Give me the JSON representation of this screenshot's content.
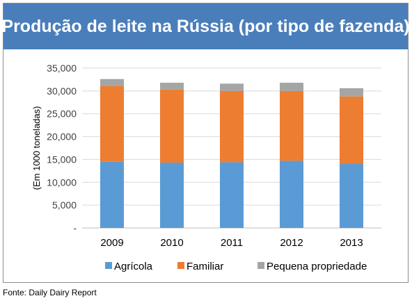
{
  "chart_data": {
    "type": "bar",
    "stacked": true,
    "title": "Produção de leite na Rússia (por tipo de fazenda)",
    "ylabel": "(Em 1000 toneladas)",
    "xlabel": "",
    "categories": [
      "2009",
      "2010",
      "2011",
      "2012",
      "2013"
    ],
    "series": [
      {
        "name": "Agrícola",
        "color": "#5b9bd5",
        "values": [
          14500,
          14300,
          14400,
          14700,
          14000
        ]
      },
      {
        "name": "Familiar",
        "color": "#ed7d31",
        "values": [
          16600,
          16000,
          15600,
          15300,
          14800
        ]
      },
      {
        "name": "Pequena propriedade",
        "color": "#a5a5a5",
        "values": [
          1500,
          1500,
          1600,
          1800,
          1800
        ]
      }
    ],
    "ylim": [
      0,
      35000
    ],
    "yticks": [
      0,
      5000,
      10000,
      15000,
      20000,
      25000,
      30000,
      35000
    ],
    "ytick_labels": [
      "-",
      "5,000",
      "10,000",
      "15,000",
      "20,000",
      "25,000",
      "30,000",
      "35,000"
    ],
    "grid": true,
    "legend_position": "bottom"
  },
  "source": "Fonte: Daily Dairy Report"
}
